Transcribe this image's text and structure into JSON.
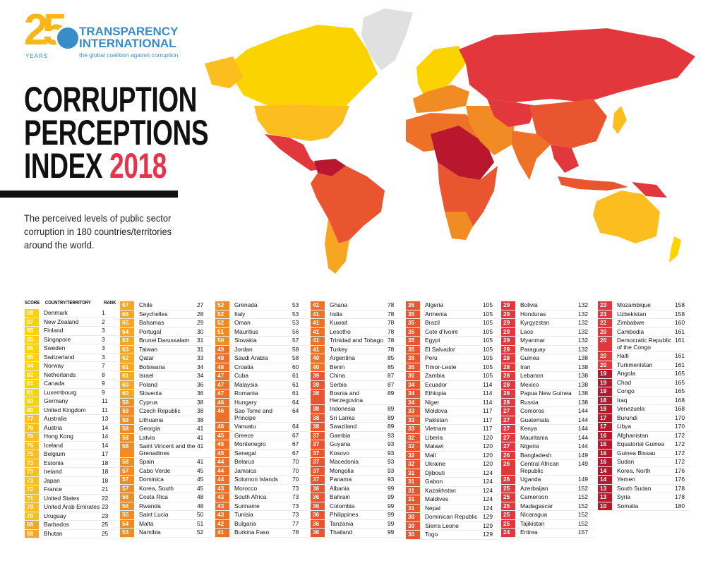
{
  "logo": {
    "number": "25",
    "years": "YEARS",
    "line1": "TRANSPARENCY",
    "line2": "INTERNATIONAL",
    "tagline": "the global coalition against corruption"
  },
  "header": {
    "title_line1": "CORRUPTION",
    "title_line2": "PERCEPTIONS",
    "title_line3": "INDEX",
    "year": "2018",
    "subtitle": "The perceived levels of public sector corruption in 180 countries/territories around the world."
  },
  "table_header": {
    "score": "SCORE",
    "country": "COUNTRY/TERRITORY",
    "rank": "RANK"
  },
  "colors": {
    "80-89": "#fbd400",
    "70-79": "#fbbe1e",
    "60-69": "#f6a623",
    "50-59": "#f18b24",
    "40-49": "#ee7128",
    "30-39": "#e9552f",
    "20-29": "#e2373c",
    "10-19": "#b8172e",
    "no_data": "#e0e0e0"
  },
  "chart_data": {
    "type": "table",
    "columns": [
      "Score",
      "Country/Territory",
      "Rank"
    ],
    "rows": [
      [
        88,
        "Denmark",
        1
      ],
      [
        87,
        "New Zealand",
        2
      ],
      [
        85,
        "Finland",
        3
      ],
      [
        85,
        "Singapore",
        3
      ],
      [
        85,
        "Sweden",
        3
      ],
      [
        85,
        "Switzerland",
        3
      ],
      [
        84,
        "Norway",
        7
      ],
      [
        82,
        "Netherlands",
        8
      ],
      [
        81,
        "Canada",
        9
      ],
      [
        81,
        "Luxembourg",
        9
      ],
      [
        80,
        "Germany",
        11
      ],
      [
        80,
        "United Kingdom",
        11
      ],
      [
        77,
        "Australia",
        13
      ],
      [
        76,
        "Austria",
        14
      ],
      [
        76,
        "Hong Kong",
        14
      ],
      [
        76,
        "Iceland",
        14
      ],
      [
        75,
        "Belgium",
        17
      ],
      [
        73,
        "Estonia",
        18
      ],
      [
        73,
        "Ireland",
        18
      ],
      [
        73,
        "Japan",
        18
      ],
      [
        72,
        "France",
        21
      ],
      [
        71,
        "United States",
        22
      ],
      [
        70,
        "United Arab Emirates",
        23
      ],
      [
        70,
        "Uruguay",
        23
      ],
      [
        68,
        "Barbados",
        25
      ],
      [
        68,
        "Bhutan",
        25
      ],
      [
        67,
        "Chile",
        27
      ],
      [
        66,
        "Seychelles",
        28
      ],
      [
        65,
        "Bahamas",
        29
      ],
      [
        64,
        "Portugal",
        30
      ],
      [
        63,
        "Brunei Darussalam",
        31
      ],
      [
        63,
        "Taiwan",
        31
      ],
      [
        62,
        "Qatar",
        33
      ],
      [
        61,
        "Botswana",
        34
      ],
      [
        61,
        "Israel",
        34
      ],
      [
        60,
        "Poland",
        36
      ],
      [
        60,
        "Slovenia",
        36
      ],
      [
        59,
        "Cyprus",
        38
      ],
      [
        59,
        "Czech Republic",
        38
      ],
      [
        59,
        "Lithuania",
        38
      ],
      [
        58,
        "Georgia",
        41
      ],
      [
        58,
        "Latvia",
        41
      ],
      [
        58,
        "Saint Vincent and the Grenadines",
        41
      ],
      [
        58,
        "Spain",
        41
      ],
      [
        57,
        "Cabo Verde",
        45
      ],
      [
        57,
        "Dominica",
        45
      ],
      [
        57,
        "Korea, South",
        45
      ],
      [
        56,
        "Costa Rica",
        48
      ],
      [
        56,
        "Rwanda",
        48
      ],
      [
        55,
        "Saint Lucia",
        50
      ],
      [
        54,
        "Malta",
        51
      ],
      [
        53,
        "Namibia",
        52
      ],
      [
        52,
        "Grenada",
        53
      ],
      [
        52,
        "Italy",
        53
      ],
      [
        52,
        "Oman",
        53
      ],
      [
        51,
        "Mauritius",
        56
      ],
      [
        50,
        "Slovakia",
        57
      ],
      [
        49,
        "Jordan",
        58
      ],
      [
        49,
        "Saudi Arabia",
        58
      ],
      [
        48,
        "Croatia",
        60
      ],
      [
        47,
        "Cuba",
        61
      ],
      [
        47,
        "Malaysia",
        61
      ],
      [
        47,
        "Romania",
        61
      ],
      [
        46,
        "Hungary",
        64
      ],
      [
        46,
        "Sao Tome and Principe",
        64
      ],
      [
        46,
        "Vanuatu",
        64
      ],
      [
        45,
        "Greece",
        67
      ],
      [
        45,
        "Montenegro",
        67
      ],
      [
        45,
        "Senegal",
        67
      ],
      [
        44,
        "Belarus",
        70
      ],
      [
        44,
        "Jamaica",
        70
      ],
      [
        44,
        "Solomon Islands",
        70
      ],
      [
        43,
        "Morocco",
        73
      ],
      [
        43,
        "South Africa",
        73
      ],
      [
        43,
        "Suriname",
        73
      ],
      [
        43,
        "Tunisia",
        73
      ],
      [
        42,
        "Bulgaria",
        77
      ],
      [
        41,
        "Burkina Faso",
        78
      ],
      [
        41,
        "Ghana",
        78
      ],
      [
        41,
        "India",
        78
      ],
      [
        41,
        "Kuwait",
        78
      ],
      [
        41,
        "Lesotho",
        78
      ],
      [
        41,
        "Trinidad and Tobago",
        78
      ],
      [
        41,
        "Turkey",
        78
      ],
      [
        40,
        "Argentina",
        85
      ],
      [
        40,
        "Benin",
        85
      ],
      [
        39,
        "China",
        87
      ],
      [
        39,
        "Serbia",
        87
      ],
      [
        38,
        "Bosnia and Herzegovina",
        89
      ],
      [
        38,
        "Indonesia",
        89
      ],
      [
        38,
        "Sri Lanka",
        89
      ],
      [
        38,
        "Swaziland",
        89
      ],
      [
        37,
        "Gambia",
        93
      ],
      [
        37,
        "Guyana",
        93
      ],
      [
        37,
        "Kosovo",
        93
      ],
      [
        37,
        "Macedonia",
        93
      ],
      [
        37,
        "Mongolia",
        93
      ],
      [
        37,
        "Panama",
        93
      ],
      [
        36,
        "Albania",
        99
      ],
      [
        36,
        "Bahrain",
        99
      ],
      [
        36,
        "Colombia",
        99
      ],
      [
        36,
        "Philippines",
        99
      ],
      [
        36,
        "Tanzania",
        99
      ],
      [
        36,
        "Thailand",
        99
      ],
      [
        35,
        "Algeria",
        105
      ],
      [
        35,
        "Armenia",
        105
      ],
      [
        35,
        "Brazil",
        105
      ],
      [
        35,
        "Cote d'Ivoire",
        105
      ],
      [
        35,
        "Egypt",
        105
      ],
      [
        35,
        "El Salvador",
        105
      ],
      [
        35,
        "Peru",
        105
      ],
      [
        35,
        "Timor-Leste",
        105
      ],
      [
        35,
        "Zambia",
        105
      ],
      [
        34,
        "Ecuador",
        114
      ],
      [
        34,
        "Ethiopia",
        114
      ],
      [
        34,
        "Niger",
        114
      ],
      [
        33,
        "Moldova",
        117
      ],
      [
        33,
        "Pakistan",
        117
      ],
      [
        33,
        "Vietnam",
        117
      ],
      [
        32,
        "Liberia",
        120
      ],
      [
        32,
        "Malawi",
        120
      ],
      [
        32,
        "Mali",
        120
      ],
      [
        32,
        "Ukraine",
        120
      ],
      [
        31,
        "Djibouti",
        124
      ],
      [
        31,
        "Gabon",
        124
      ],
      [
        31,
        "Kazakhstan",
        124
      ],
      [
        31,
        "Maldives",
        124
      ],
      [
        31,
        "Nepal",
        124
      ],
      [
        30,
        "Dominican Republic",
        129
      ],
      [
        30,
        "Sierra Leone",
        129
      ],
      [
        30,
        "Togo",
        129
      ],
      [
        29,
        "Bolivia",
        132
      ],
      [
        29,
        "Honduras",
        132
      ],
      [
        29,
        "Kyrgyzstan",
        132
      ],
      [
        29,
        "Laos",
        132
      ],
      [
        29,
        "Myanmar",
        132
      ],
      [
        29,
        "Paraguay",
        132
      ],
      [
        28,
        "Guinea",
        138
      ],
      [
        28,
        "Iran",
        138
      ],
      [
        28,
        "Lebanon",
        138
      ],
      [
        28,
        "Mexico",
        138
      ],
      [
        28,
        "Papua New Guinea",
        138
      ],
      [
        28,
        "Russia",
        138
      ],
      [
        27,
        "Comoros",
        144
      ],
      [
        27,
        "Guatemala",
        144
      ],
      [
        27,
        "Kenya",
        144
      ],
      [
        27,
        "Mauritania",
        144
      ],
      [
        27,
        "Nigeria",
        144
      ],
      [
        26,
        "Bangladesh",
        149
      ],
      [
        26,
        "Central African Republic",
        149
      ],
      [
        26,
        "Uganda",
        149
      ],
      [
        25,
        "Azerbaijan",
        152
      ],
      [
        25,
        "Cameroon",
        152
      ],
      [
        25,
        "Madagascar",
        152
      ],
      [
        25,
        "Nicaragua",
        152
      ],
      [
        25,
        "Tajikistan",
        152
      ],
      [
        24,
        "Eritrea",
        157
      ],
      [
        23,
        "Mozambique",
        158
      ],
      [
        23,
        "Uzbekistan",
        158
      ],
      [
        22,
        "Zimbabwe",
        160
      ],
      [
        20,
        "Cambodia",
        161
      ],
      [
        20,
        "Democratic Republic of the Congo",
        161
      ],
      [
        20,
        "Haiti",
        161
      ],
      [
        20,
        "Turkmenistan",
        161
      ],
      [
        19,
        "Angola",
        165
      ],
      [
        19,
        "Chad",
        165
      ],
      [
        19,
        "Congo",
        165
      ],
      [
        18,
        "Iraq",
        168
      ],
      [
        18,
        "Venezuela",
        168
      ],
      [
        17,
        "Burundi",
        170
      ],
      [
        17,
        "Libya",
        170
      ],
      [
        16,
        "Afghanistan",
        172
      ],
      [
        16,
        "Equatorial Guinea",
        172
      ],
      [
        16,
        "Guinea Bissau",
        172
      ],
      [
        16,
        "Sudan",
        172
      ],
      [
        14,
        "Korea, North",
        176
      ],
      [
        14,
        "Yemen",
        176
      ],
      [
        13,
        "South Sudan",
        178
      ],
      [
        13,
        "Syria",
        178
      ],
      [
        10,
        "Somalia",
        180
      ]
    ],
    "column_breaks": [
      26,
      52,
      78,
      104,
      131,
      157,
      180
    ]
  }
}
